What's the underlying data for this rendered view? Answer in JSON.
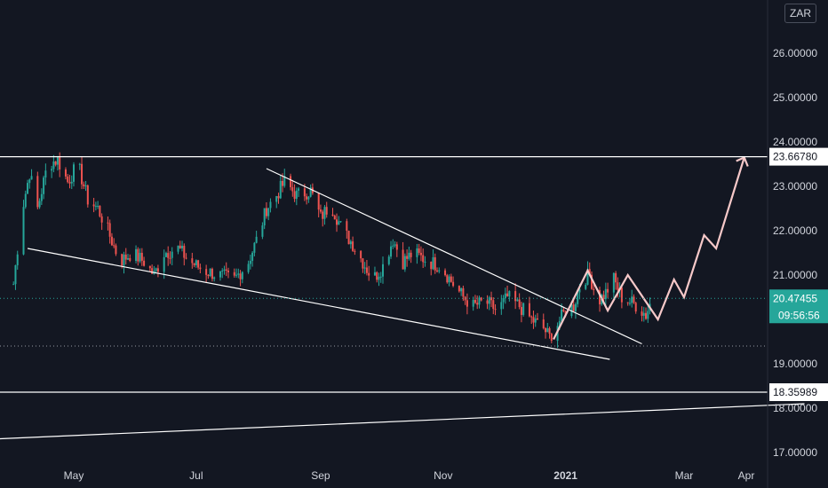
{
  "currency": "ZAR",
  "colors": {
    "background": "#131722",
    "up": "#26a69a",
    "down": "#ef5350",
    "drawing": "#ffffff",
    "projection": "#f7c9c9",
    "current_price": "#26a69a",
    "text": "#d1d4dc"
  },
  "chart_data": {
    "type": "candlestick",
    "x_ticks": [
      {
        "label": "May",
        "date": "2020-05-01"
      },
      {
        "label": "Jul",
        "date": "2020-07-01"
      },
      {
        "label": "Sep",
        "date": "2020-09-01"
      },
      {
        "label": "Nov",
        "date": "2020-11-01"
      },
      {
        "label": "2021",
        "date": "2021-01-01"
      },
      {
        "label": "Mar",
        "date": "2021-03-01"
      },
      {
        "label": "Apr",
        "date": "2021-04-01"
      }
    ],
    "y_ticks": [
      "26.00000",
      "25.00000",
      "24.00000",
      "23.00000",
      "22.00000",
      "21.00000",
      "19.00000",
      "18.00000",
      "17.00000"
    ],
    "ylim": [
      16.8,
      27.0
    ],
    "close_path": [
      [
        "2020-04-01",
        20.8
      ],
      [
        "2020-04-05",
        22.4
      ],
      [
        "2020-04-09",
        23.3
      ],
      [
        "2020-04-13",
        22.5
      ],
      [
        "2020-04-18",
        23.5
      ],
      [
        "2020-04-23",
        23.6
      ],
      [
        "2020-04-28",
        23.1
      ],
      [
        "2020-05-03",
        23.5
      ],
      [
        "2020-05-08",
        22.7
      ],
      [
        "2020-05-13",
        22.5
      ],
      [
        "2020-05-18",
        22.0
      ],
      [
        "2020-05-24",
        21.3
      ],
      [
        "2020-05-30",
        21.5
      ],
      [
        "2020-06-05",
        21.3
      ],
      [
        "2020-06-10",
        21.0
      ],
      [
        "2020-06-15",
        21.5
      ],
      [
        "2020-06-22",
        21.6
      ],
      [
        "2020-06-28",
        21.3
      ],
      [
        "2020-07-05",
        21.1
      ],
      [
        "2020-07-12",
        21.0
      ],
      [
        "2020-07-20",
        20.9
      ],
      [
        "2020-07-27",
        21.3
      ],
      [
        "2020-08-01",
        21.9
      ],
      [
        "2020-08-05",
        22.5
      ],
      [
        "2020-08-10",
        22.8
      ],
      [
        "2020-08-14",
        23.1
      ],
      [
        "2020-08-20",
        22.8
      ],
      [
        "2020-08-27",
        22.9
      ],
      [
        "2020-09-01",
        22.3
      ],
      [
        "2020-09-06",
        22.6
      ],
      [
        "2020-09-12",
        22.0
      ],
      [
        "2020-09-17",
        21.7
      ],
      [
        "2020-09-22",
        21.3
      ],
      [
        "2020-09-27",
        20.9
      ],
      [
        "2020-10-02",
        21.2
      ],
      [
        "2020-10-07",
        21.8
      ],
      [
        "2020-10-12",
        21.3
      ],
      [
        "2020-10-17",
        21.5
      ],
      [
        "2020-10-25",
        21.3
      ],
      [
        "2020-10-31",
        21.2
      ],
      [
        "2020-11-06",
        20.8
      ],
      [
        "2020-11-11",
        20.5
      ],
      [
        "2020-11-16",
        20.3
      ],
      [
        "2020-11-22",
        20.4
      ],
      [
        "2020-11-28",
        20.2
      ],
      [
        "2020-12-03",
        20.5
      ],
      [
        "2020-12-09",
        20.3
      ],
      [
        "2020-12-15",
        20.0
      ],
      [
        "2020-12-21",
        19.8
      ],
      [
        "2020-12-24",
        19.6
      ],
      [
        "2020-12-28",
        19.9
      ],
      [
        "2021-01-01",
        20.2
      ],
      [
        "2021-01-05",
        20.3
      ],
      [
        "2021-01-09",
        20.9
      ],
      [
        "2021-01-13",
        21.0
      ],
      [
        "2021-01-17",
        20.4
      ],
      [
        "2021-01-21",
        20.6
      ],
      [
        "2021-01-25",
        20.9
      ],
      [
        "2021-01-29",
        20.5
      ],
      [
        "2021-02-02",
        20.4
      ],
      [
        "2021-02-06",
        20.3
      ],
      [
        "2021-02-10",
        20.1
      ],
      [
        "2021-02-13",
        20.47
      ]
    ],
    "horizontal_levels": [
      {
        "price": 23.6678,
        "label": "23.66780"
      },
      {
        "price": 18.35989,
        "label": "18.35989"
      }
    ],
    "current_price": {
      "price": 20.47455,
      "label": "20.47455",
      "countdown": "09:56:56"
    },
    "lower_dotted_level": 19.4,
    "trendlines": [
      {
        "name": "wedge-lower",
        "points": [
          [
            "2020-04-08",
            21.6
          ],
          [
            "2021-01-23",
            19.1
          ]
        ]
      },
      {
        "name": "wedge-upper",
        "points": [
          [
            "2020-08-05",
            23.4
          ],
          [
            "2021-02-08",
            19.45
          ]
        ]
      },
      {
        "name": "long-support",
        "points": [
          [
            "2020-03-20",
            17.3
          ],
          [
            "2021-04-30",
            18.1
          ]
        ]
      }
    ],
    "projection_path": [
      [
        "2020-12-26",
        19.55
      ],
      [
        "2021-01-12",
        21.1
      ],
      [
        "2021-01-22",
        20.2
      ],
      [
        "2021-02-01",
        21.0
      ],
      [
        "2021-02-16",
        20.0
      ],
      [
        "2021-02-24",
        20.9
      ],
      [
        "2021-03-01",
        20.5
      ],
      [
        "2021-03-11",
        21.9
      ],
      [
        "2021-03-17",
        21.6
      ],
      [
        "2021-03-31",
        23.65
      ]
    ]
  }
}
